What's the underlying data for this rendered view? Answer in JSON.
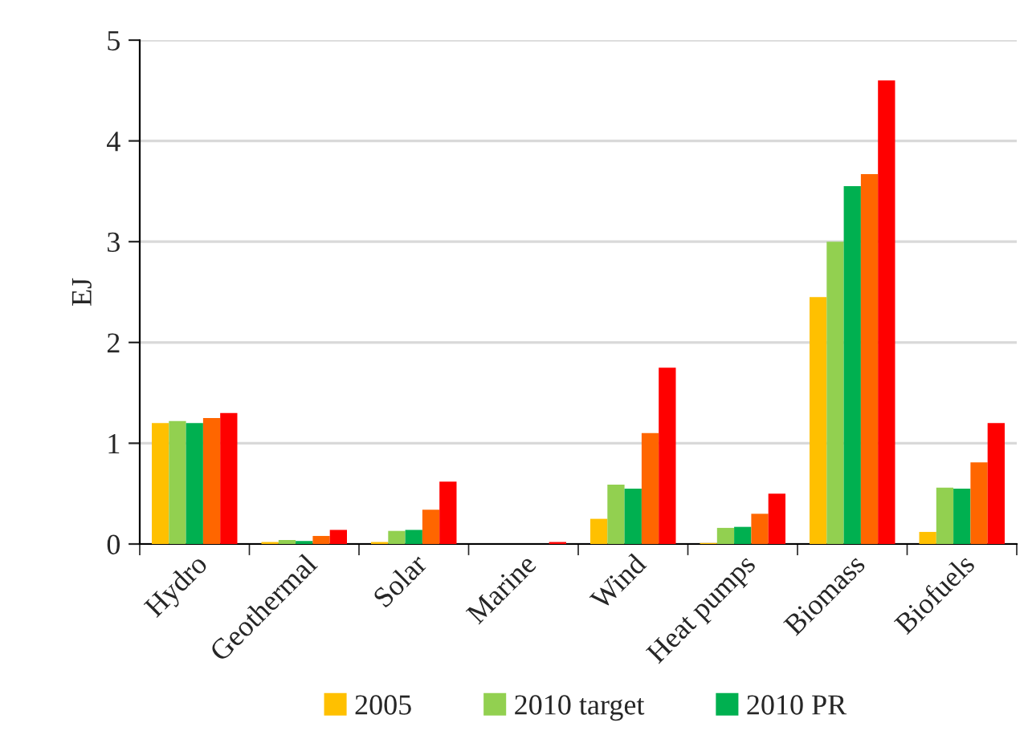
{
  "chart_data": {
    "type": "bar",
    "ylabel": "EJ",
    "categories": [
      "Hydro",
      "Geothermal",
      "Solar",
      "Marine",
      "Wind",
      "Heat pumps",
      "Biomass",
      "Biofuels"
    ],
    "series": [
      {
        "name": "2005",
        "color": "#ffc000",
        "values": [
          1.2,
          0.02,
          0.02,
          null,
          0.25,
          0.01,
          2.45,
          0.12
        ]
      },
      {
        "name": "2010 target",
        "color": "#92d050",
        "values": [
          1.22,
          0.04,
          0.13,
          null,
          0.59,
          0.16,
          3.0,
          0.56
        ]
      },
      {
        "name": "2010 PR",
        "color": "#00b050",
        "values": [
          1.2,
          0.03,
          0.14,
          null,
          0.55,
          0.17,
          3.55,
          0.55
        ]
      },
      {
        "color": "#ff6600",
        "values": [
          1.25,
          0.08,
          0.34,
          null,
          1.1,
          0.3,
          3.67,
          0.81
        ]
      },
      {
        "color": "#ff0000",
        "values": [
          1.3,
          0.14,
          0.62,
          0.02,
          1.75,
          0.5,
          4.6,
          1.2
        ]
      }
    ],
    "ylim": [
      0,
      5
    ],
    "yticks": [
      0,
      1,
      2,
      3,
      4,
      5
    ],
    "grid": "y",
    "legend": "bottom"
  }
}
